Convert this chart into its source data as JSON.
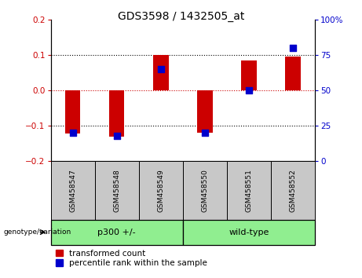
{
  "title": "GDS3598 / 1432505_at",
  "samples": [
    "GSM458547",
    "GSM458548",
    "GSM458549",
    "GSM458550",
    "GSM458551",
    "GSM458552"
  ],
  "red_values": [
    -0.122,
    -0.13,
    0.1,
    -0.12,
    0.085,
    0.095
  ],
  "blue_values": [
    20,
    18,
    65,
    20,
    50,
    80
  ],
  "ylim_left": [
    -0.2,
    0.2
  ],
  "ylim_right": [
    0,
    100
  ],
  "left_yticks": [
    -0.2,
    -0.1,
    0,
    0.1,
    0.2
  ],
  "right_yticks": [
    0,
    25,
    50,
    75,
    100
  ],
  "right_yticklabels": [
    "0",
    "25",
    "50",
    "75",
    "100%"
  ],
  "red_color": "#cc0000",
  "blue_color": "#0000cc",
  "bar_width": 0.35,
  "blue_marker_size": 28,
  "groups": [
    {
      "label": "p300 +/-",
      "color": "#90ee90"
    },
    {
      "label": "wild-type",
      "color": "#90ee90"
    }
  ],
  "group_box_color": "#c8c8c8",
  "dotted_line_color": "#000000",
  "red_dotted_line_color": "#cc0000",
  "title_fontsize": 10,
  "tick_fontsize": 7.5,
  "label_fontsize": 6.5,
  "legend_fontsize": 7.5,
  "background_color": "#ffffff"
}
